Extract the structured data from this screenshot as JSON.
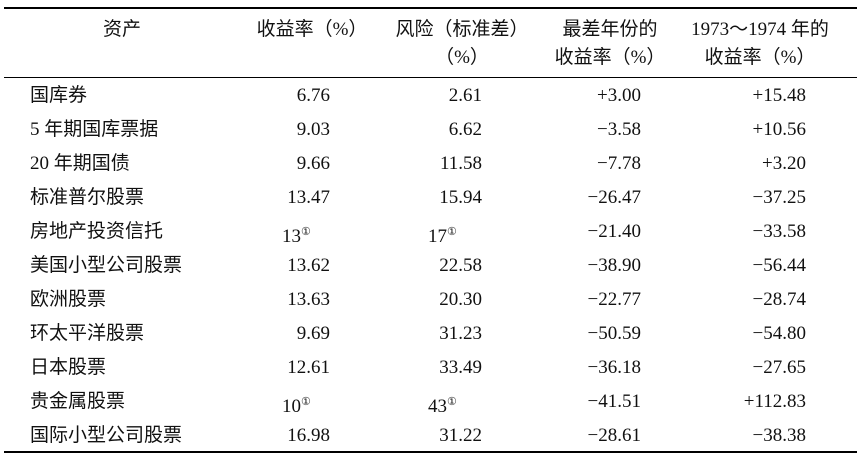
{
  "table": {
    "headers": [
      [
        "资产"
      ],
      [
        "收益率（%）"
      ],
      [
        "风险（标准差）",
        "（%）"
      ],
      [
        "最差年份的",
        "收益率（%）"
      ],
      [
        "1973～1974 年的",
        "收益率（%）"
      ]
    ],
    "rows": [
      [
        "国库券",
        "6.76",
        "2.61",
        "+3.00",
        "+15.48"
      ],
      [
        "5 年期国库票据",
        "9.03",
        "6.62",
        "−3.58",
        "+10.56"
      ],
      [
        "20 年期国债",
        "9.66",
        "11.58",
        "−7.78",
        "+3.20"
      ],
      [
        "标准普尔股票",
        "13.47",
        "15.94",
        "−26.47",
        "−37.25"
      ],
      [
        "房地产投资信托",
        {
          "text": "13",
          "note": "①"
        },
        {
          "text": "17",
          "note": "①"
        },
        "−21.40",
        "−33.58"
      ],
      [
        "美国小型公司股票",
        "13.62",
        "22.58",
        "−38.90",
        "−56.44"
      ],
      [
        "欧洲股票",
        "13.63",
        "20.30",
        "−22.77",
        "−28.74"
      ],
      [
        "环太平洋股票",
        "9.69",
        "31.23",
        "−50.59",
        "−54.80"
      ],
      [
        "日本股票",
        "12.61",
        "33.49",
        "−36.18",
        "−27.65"
      ],
      [
        "贵金属股票",
        {
          "text": "10",
          "note": "①"
        },
        {
          "text": "43",
          "note": "①"
        },
        "−41.51",
        "+112.83"
      ],
      [
        "国际小型公司股票",
        "16.98",
        "31.22",
        "−28.61",
        "−38.38"
      ]
    ]
  }
}
